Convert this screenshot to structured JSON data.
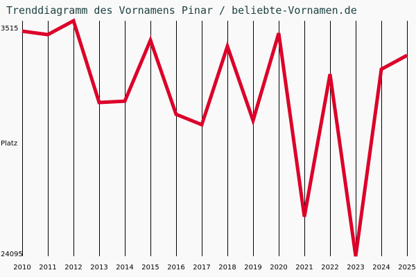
{
  "title": "Trenddiagramm des Vornamens Pinar / beliebte-Vornamen.de",
  "chart_data": {
    "type": "line",
    "title": "Trenddiagramm des Vornamens Pinar / beliebte-Vornamen.de",
    "xlabel": "",
    "ylabel": "Platz",
    "y_inverted": true,
    "ylim": [
      3515,
      24095
    ],
    "y_tick_labels": [
      "3515",
      "24095"
    ],
    "categories": [
      "2010",
      "2011",
      "2012",
      "2013",
      "2014",
      "2015",
      "2016",
      "2017",
      "2018",
      "2019",
      "2020",
      "2021",
      "2022",
      "2023",
      "2024",
      "2025"
    ],
    "series": [
      {
        "name": "Pinar",
        "color": "#dc0029",
        "values": [
          4420,
          4725,
          3515,
          10660,
          10540,
          5210,
          11690,
          12600,
          5750,
          12230,
          4600,
          20640,
          8180,
          24095,
          7750,
          6540
        ]
      }
    ],
    "grid": {
      "vertical": true,
      "horizontal": false
    },
    "legend": "none"
  },
  "colors": {
    "background": "#f9f9f9",
    "line": "#dc0029",
    "title": "#1e4040",
    "grid": "#000000"
  }
}
